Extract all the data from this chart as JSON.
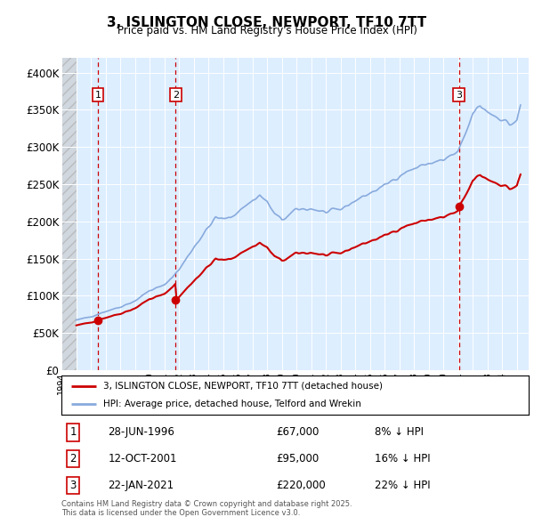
{
  "title": "3, ISLINGTON CLOSE, NEWPORT, TF10 7TT",
  "subtitle": "Price paid vs. HM Land Registry's House Price Index (HPI)",
  "ylim": [
    0,
    420000
  ],
  "yticks": [
    0,
    50000,
    100000,
    150000,
    200000,
    250000,
    300000,
    350000,
    400000
  ],
  "ytick_labels": [
    "£0",
    "£50K",
    "£100K",
    "£150K",
    "£200K",
    "£250K",
    "£300K",
    "£350K",
    "£400K"
  ],
  "xlim_start": 1994.0,
  "xlim_end": 2025.8,
  "sale_dates_year": [
    1996.49,
    2001.78,
    2021.06
  ],
  "sale_prices": [
    67000,
    95000,
    220000
  ],
  "sale_labels": [
    "1",
    "2",
    "3"
  ],
  "sale_date_strings": [
    "28-JUN-1996",
    "12-OCT-2001",
    "22-JAN-2021"
  ],
  "sale_price_strings": [
    "£67,000",
    "£95,000",
    "£220,000"
  ],
  "sale_pct_strings": [
    "8% ↓ HPI",
    "16% ↓ HPI",
    "22% ↓ HPI"
  ],
  "red_line_color": "#cc0000",
  "blue_line_color": "#88aadd",
  "dashed_line_color": "#cc0000",
  "legend_line1": "3, ISLINGTON CLOSE, NEWPORT, TF10 7TT (detached house)",
  "legend_line2": "HPI: Average price, detached house, Telford and Wrekin",
  "footnote": "Contains HM Land Registry data © Crown copyright and database right 2025.\nThis data is licensed under the Open Government Licence v3.0.",
  "background_plot": "#ddeeff",
  "hatch_end_year": 1995.0
}
